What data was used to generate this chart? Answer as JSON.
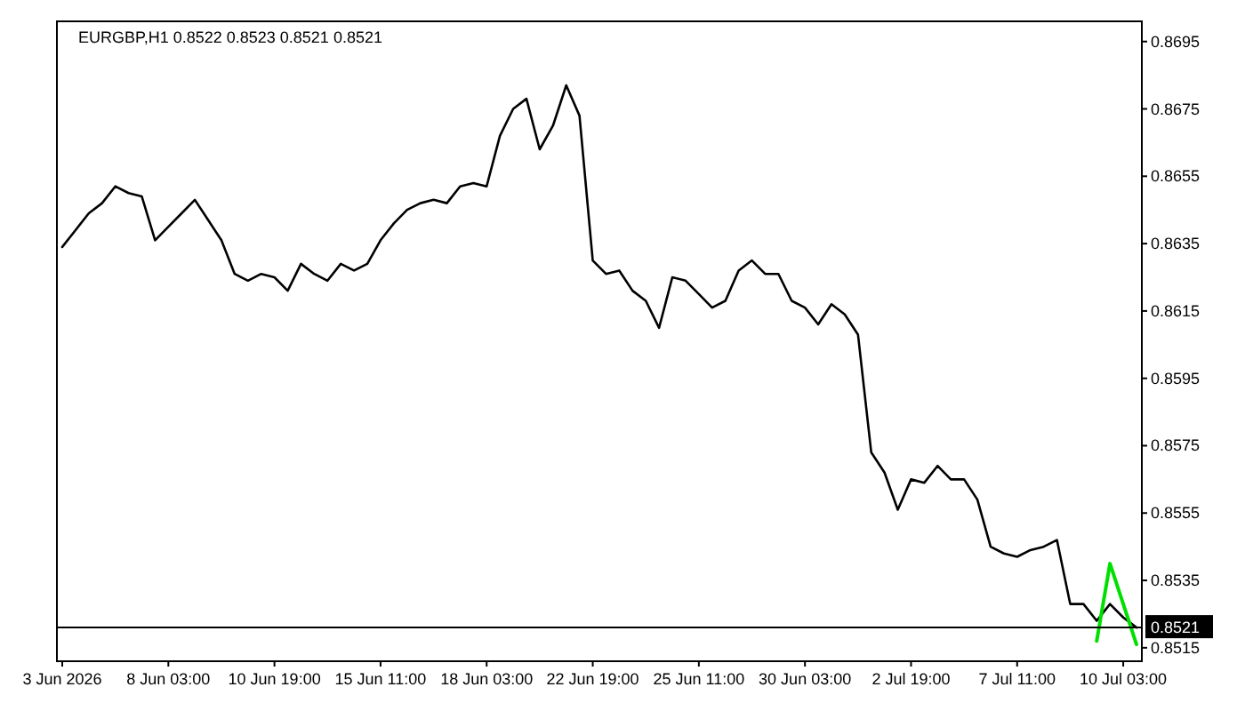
{
  "chart_data": {
    "type": "line",
    "title": "EURGBP,H1  0.8522 0.8523 0.8521 0.8521",
    "categories": [
      "3 Jun 2026",
      null,
      null,
      null,
      null,
      null,
      null,
      null,
      "8 Jun 03:00",
      null,
      null,
      null,
      null,
      null,
      null,
      null,
      "10 Jun 19:00",
      null,
      null,
      null,
      null,
      null,
      null,
      null,
      "15 Jun 11:00",
      null,
      null,
      null,
      null,
      null,
      null,
      null,
      "18 Jun 03:00",
      null,
      null,
      null,
      null,
      null,
      null,
      null,
      "22 Jun 19:00",
      null,
      null,
      null,
      null,
      null,
      null,
      null,
      "25 Jun 11:00",
      null,
      null,
      null,
      null,
      null,
      null,
      null,
      "30 Jun 03:00",
      null,
      null,
      null,
      null,
      null,
      null,
      null,
      "2 Jul 19:00",
      null,
      null,
      null,
      null,
      null,
      null,
      null,
      "7 Jul 11:00",
      null,
      null,
      null,
      null,
      null,
      null,
      null,
      "10 Jul 03:00",
      null
    ],
    "ylim": [
      0.8511,
      0.8701
    ],
    "yticks": [
      0.8515,
      0.8535,
      0.8555,
      0.8575,
      0.8595,
      0.8615,
      0.8635,
      0.8655,
      0.8675,
      0.8695
    ],
    "grid": false,
    "marker": "none",
    "line_style": "solid",
    "ref_lines": [
      {
        "axis": "y",
        "value": 0.8521,
        "label": "0.8521",
        "color": "#000000"
      }
    ],
    "series": [
      {
        "color": "#000000",
        "values": [
          0.8634,
          0.8639,
          0.8644,
          0.8647,
          0.8652,
          0.865,
          0.8649,
          0.8636,
          0.864,
          0.8644,
          0.8648,
          0.8642,
          0.8636,
          0.8626,
          0.8624,
          0.8626,
          0.8625,
          0.8621,
          0.8629,
          0.8626,
          0.8624,
          0.8629,
          0.8627,
          0.8629,
          0.8636,
          0.8641,
          0.8645,
          0.8647,
          0.8648,
          0.8647,
          0.8652,
          0.8653,
          0.8652,
          0.8667,
          0.8675,
          0.8678,
          0.8663,
          0.867,
          0.8682,
          0.8673,
          0.863,
          0.8626,
          0.8627,
          0.8621,
          0.8618,
          0.861,
          0.8625,
          0.8624,
          0.862,
          0.8616,
          0.8618,
          0.8627,
          0.863,
          0.8626,
          0.8626,
          0.8618,
          0.8616,
          0.8611,
          0.8617,
          0.8614,
          0.8608,
          0.8573,
          0.8567,
          0.8556,
          0.8565,
          0.8564,
          0.8569,
          0.8565,
          0.8565,
          0.8559,
          0.8545,
          0.8543,
          0.8542,
          0.8544,
          0.8545,
          0.8547,
          0.8528,
          0.8528,
          0.8523,
          0.8528,
          0.8524,
          0.8521
        ]
      },
      {
        "color": "#00e000",
        "values": [
          null,
          null,
          null,
          null,
          null,
          null,
          null,
          null,
          null,
          null,
          null,
          null,
          null,
          null,
          null,
          null,
          null,
          null,
          null,
          null,
          null,
          null,
          null,
          null,
          null,
          null,
          null,
          null,
          null,
          null,
          null,
          null,
          null,
          null,
          null,
          null,
          null,
          null,
          null,
          null,
          null,
          null,
          null,
          null,
          null,
          null,
          null,
          null,
          null,
          null,
          null,
          null,
          null,
          null,
          null,
          null,
          null,
          null,
          null,
          null,
          null,
          null,
          null,
          null,
          null,
          null,
          null,
          null,
          null,
          null,
          null,
          null,
          null,
          null,
          null,
          null,
          null,
          null,
          0.8517,
          0.854,
          0.8528,
          0.8516
        ]
      }
    ]
  }
}
